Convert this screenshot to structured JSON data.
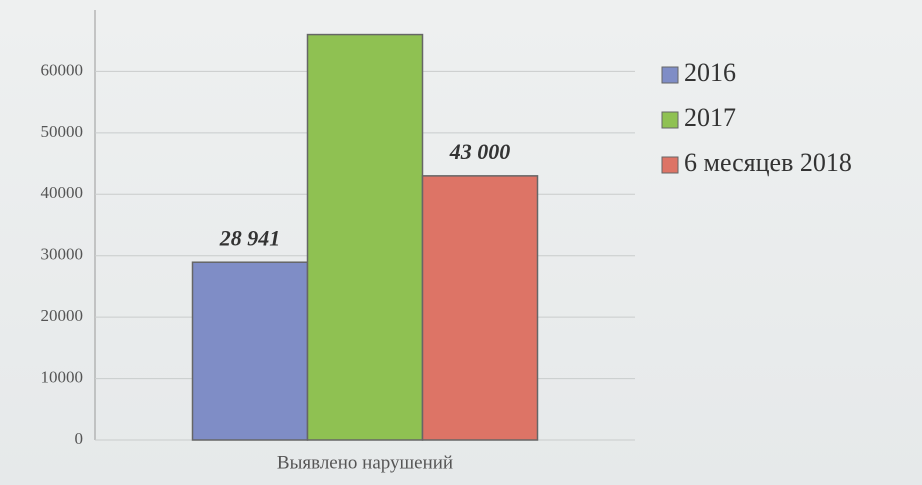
{
  "chart_data": {
    "type": "bar",
    "categories": [
      "Выявлено нарушений"
    ],
    "series": [
      {
        "name": "2016",
        "color": "#7f8dc6",
        "values": [
          28941
        ],
        "value_labels": [
          "28 941"
        ]
      },
      {
        "name": "2017",
        "color": "#8fc152",
        "values": [
          66000
        ]
      },
      {
        "name": "6 месяцев 2018",
        "color": "#dd7466",
        "values": [
          43000
        ],
        "value_labels": [
          "43 000"
        ]
      }
    ],
    "ylim": [
      0,
      70000
    ],
    "yticks": [
      0,
      10000,
      20000,
      30000,
      40000,
      50000,
      60000
    ],
    "grid": true,
    "legend": "right"
  }
}
